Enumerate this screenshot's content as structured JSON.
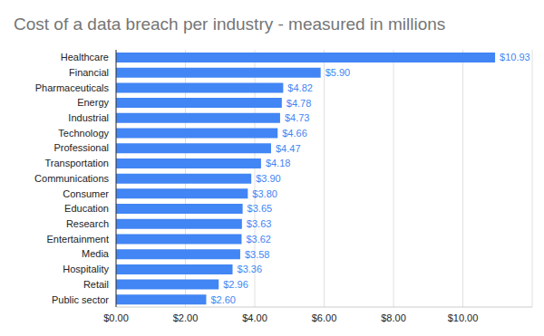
{
  "chart_data": {
    "type": "bar",
    "title": "Cost of a data breach per industry - measured in millions",
    "orientation": "horizontal",
    "categories": [
      "Healthcare",
      "Financial",
      "Pharmaceuticals",
      "Energy",
      "Industrial",
      "Technology",
      "Professional",
      "Transportation",
      "Communications",
      "Consumer",
      "Education",
      "Research",
      "Entertainment",
      "Media",
      "Hospitality",
      "Retail",
      "Public sector"
    ],
    "values": [
      10.93,
      5.9,
      4.82,
      4.78,
      4.73,
      4.66,
      4.47,
      4.18,
      3.9,
      3.8,
      3.65,
      3.63,
      3.62,
      3.58,
      3.36,
      2.96,
      2.6
    ],
    "value_labels": [
      "$10.93",
      "$5.90",
      "$4.82",
      "$4.78",
      "$4.73",
      "$4.66",
      "$4.47",
      "$4.18",
      "$3.90",
      "$3.80",
      "$3.65",
      "$3.63",
      "$3.62",
      "$3.58",
      "$3.36",
      "$2.96",
      "$2.60"
    ],
    "color": "#4285f4",
    "data_labels": true,
    "xlim": [
      0,
      12
    ],
    "xticks": [
      {
        "value": 0,
        "label": "$0.00"
      },
      {
        "value": 2,
        "label": "$2.00"
      },
      {
        "value": 4,
        "label": "$4.00"
      },
      {
        "value": 6,
        "label": "$6.00"
      },
      {
        "value": 8,
        "label": "$8.00"
      },
      {
        "value": 10,
        "label": "$10.00"
      }
    ],
    "grid": true
  }
}
